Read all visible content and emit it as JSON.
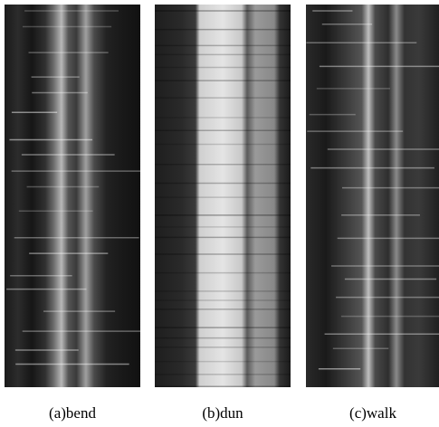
{
  "figure": {
    "panels": [
      {
        "caption": "(a)bend"
      },
      {
        "caption": "(b)dun"
      },
      {
        "caption": "(c)walk"
      }
    ]
  }
}
